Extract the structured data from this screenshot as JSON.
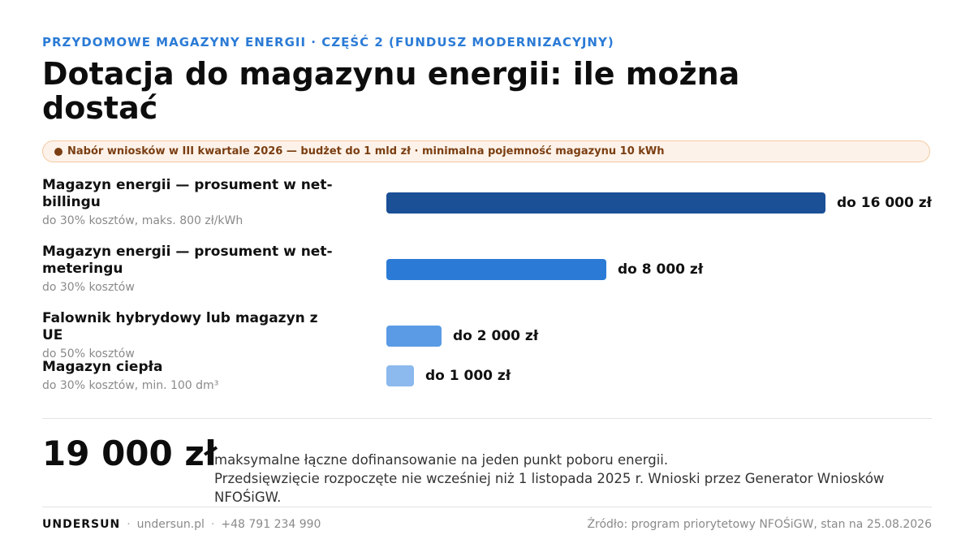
{
  "header": {
    "kicker": "PRZYDOMOWE MAGAZYNY ENERGII · CZĘŚĆ 2 (FUNDUSZ MODERNIZACYJNY)",
    "title": "Dotacja do magazynu energii: ile można dostać"
  },
  "banner": {
    "text": "Nabór wniosków w III kwartale 2026 — budżet do 1 mld zł · minimalna pojemność magazynu 10 kWh",
    "dot_color": "#7a3e12"
  },
  "chart_data": {
    "type": "bar",
    "orientation": "horizontal",
    "unit": "zł",
    "xlim": [
      0,
      16000
    ],
    "categories": [
      "Magazyn energii — prosument w net-billingu",
      "Magazyn energii — prosument w net-meteringu",
      "Falownik hybrydowy lub magazyn z UE",
      "Magazyn ciepła"
    ],
    "subtitles": [
      "do 30% kosztów, maks. 800 zł/kWh",
      "do 30% kosztów",
      "do 50% kosztów",
      "do 30% kosztów, min. 100 dm³"
    ],
    "values": [
      16000,
      8000,
      2000,
      1000
    ],
    "value_labels": [
      "do 16 000 zł",
      "do 8 000 zł",
      "do 2 000 zł",
      "do 1 000 zł"
    ],
    "colors": [
      "#1b4f96",
      "#2b7bd6",
      "#5b9be6",
      "#8cb9ee"
    ]
  },
  "summary": {
    "total": "19 000 zł",
    "line1": "maksymalne łączne dofinansowanie na jeden punkt poboru energii.",
    "line2": "Przedsięwzięcie rozpoczęte nie wcześniej niż 1 listopada 2025 r. Wnioski przez Generator Wniosków NFOŚiGW."
  },
  "footer": {
    "brand": "UNDERSUN",
    "website": "undersun.pl",
    "phone": "+48 791 234 990",
    "source": "Źródło: program priorytetowy NFOŚiGW, stan na 25.08.2026"
  }
}
